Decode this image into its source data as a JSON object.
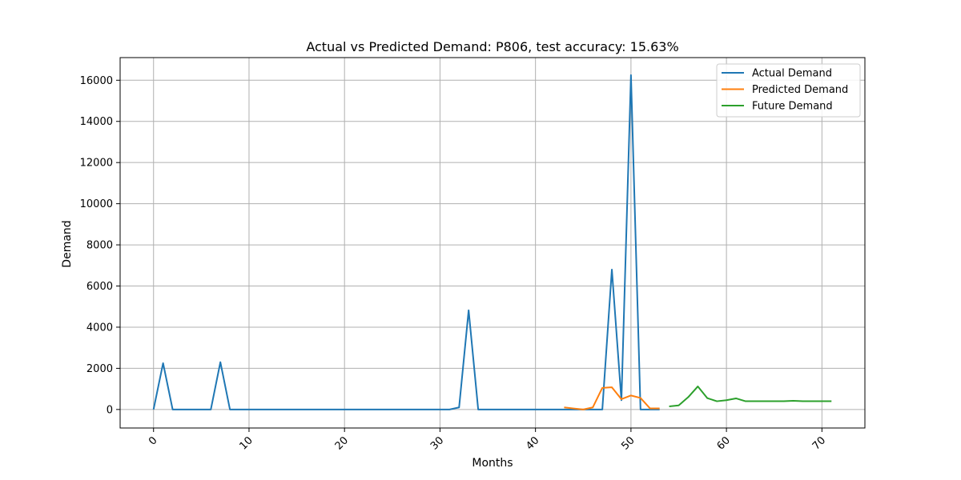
{
  "chart_data": {
    "type": "line",
    "title": "Actual vs Predicted Demand: P806, test accuracy: 15.63%",
    "xlabel": "Months",
    "ylabel": "Demand",
    "xlim": [
      -3.5,
      74.5
    ],
    "ylim": [
      -900,
      17100
    ],
    "xticks": [
      0,
      10,
      20,
      30,
      40,
      50,
      60,
      70
    ],
    "yticks": [
      0,
      2000,
      4000,
      6000,
      8000,
      10000,
      12000,
      14000,
      16000
    ],
    "grid": true,
    "legend_position": "top-right",
    "series": [
      {
        "name": "Actual Demand",
        "color": "#1f77b4",
        "x": [
          0,
          1,
          2,
          3,
          4,
          5,
          6,
          7,
          8,
          9,
          10,
          11,
          12,
          13,
          14,
          15,
          16,
          17,
          18,
          19,
          20,
          21,
          22,
          23,
          24,
          25,
          26,
          27,
          28,
          29,
          30,
          31,
          32,
          33,
          34,
          35,
          36,
          37,
          38,
          39,
          40,
          41,
          42,
          43,
          44,
          45,
          46,
          47,
          48,
          49,
          50,
          51,
          52,
          53
        ],
        "values": [
          0,
          2250,
          0,
          0,
          0,
          0,
          0,
          2300,
          0,
          0,
          0,
          0,
          0,
          0,
          0,
          0,
          0,
          0,
          0,
          0,
          0,
          0,
          0,
          0,
          0,
          0,
          0,
          0,
          0,
          0,
          0,
          0,
          100,
          4820,
          0,
          0,
          0,
          0,
          0,
          0,
          0,
          0,
          0,
          0,
          0,
          0,
          0,
          0,
          6800,
          450,
          16250,
          0,
          0,
          0
        ]
      },
      {
        "name": "Predicted Demand",
        "color": "#ff7f0e",
        "x": [
          43,
          44,
          45,
          46,
          47,
          48,
          49,
          50,
          51,
          52,
          53
        ],
        "values": [
          100,
          50,
          0,
          100,
          1050,
          1080,
          500,
          680,
          560,
          50,
          50
        ]
      },
      {
        "name": "Future Demand",
        "color": "#2ca02c",
        "x": [
          54,
          55,
          56,
          57,
          58,
          59,
          60,
          61,
          62,
          63,
          64,
          65,
          66,
          67,
          68,
          69,
          70,
          71
        ],
        "values": [
          150,
          200,
          600,
          1120,
          550,
          400,
          450,
          540,
          400,
          400,
          400,
          400,
          400,
          420,
          400,
          400,
          400,
          400
        ]
      }
    ]
  }
}
